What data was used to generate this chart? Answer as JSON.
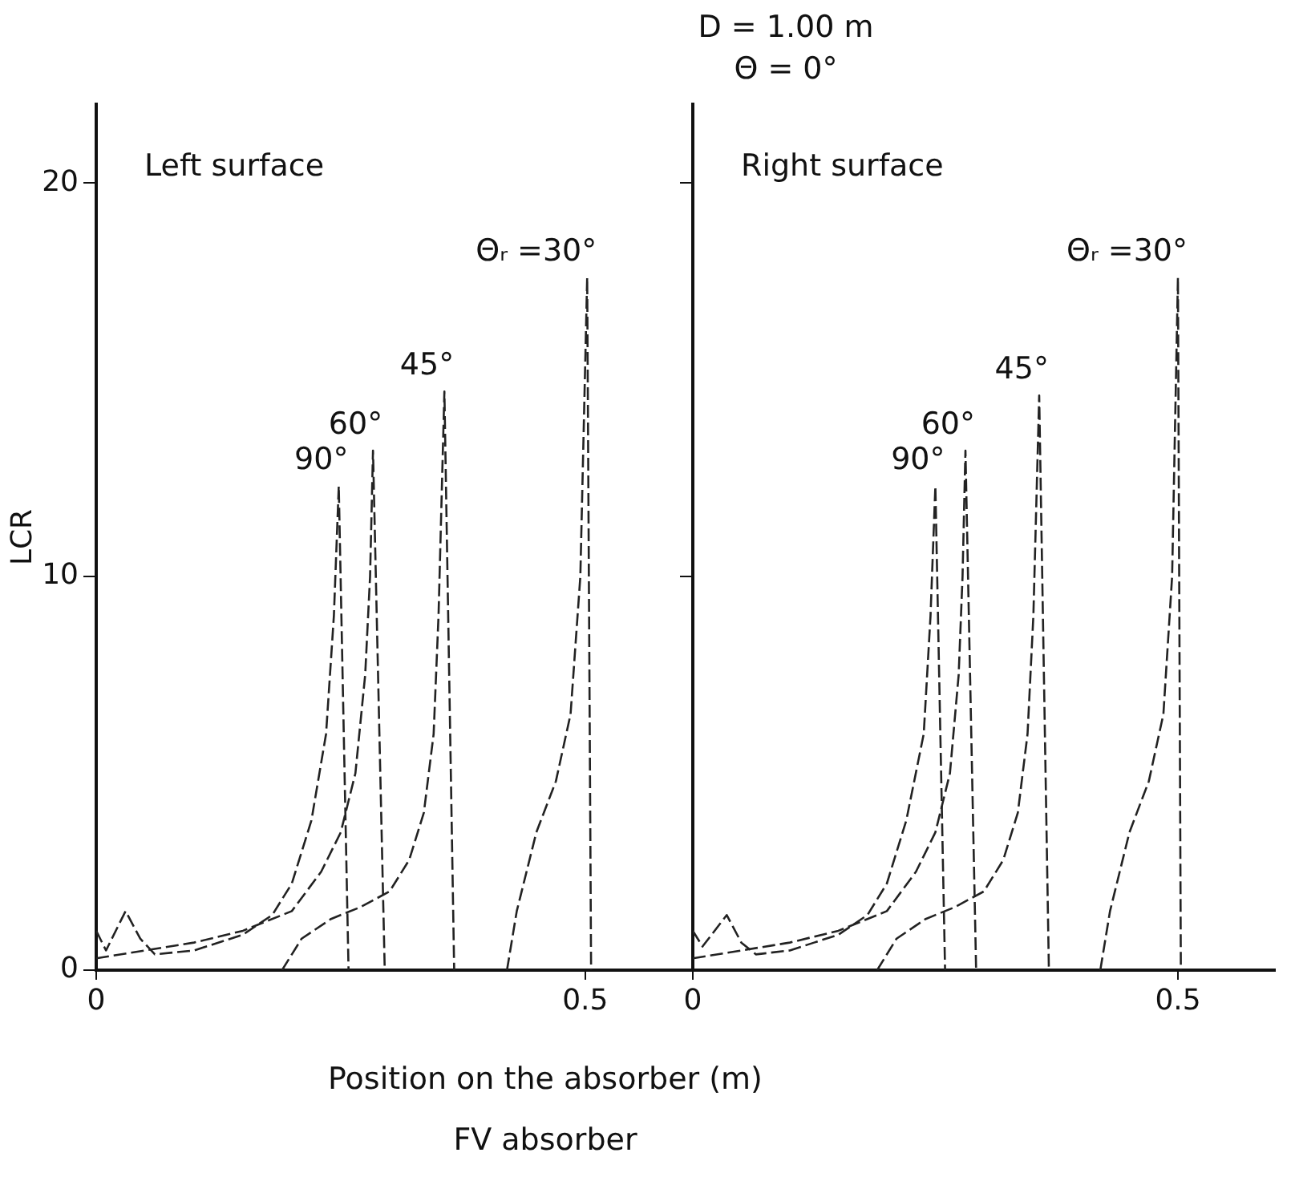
{
  "chart_data": [
    {
      "type": "line",
      "ylabel": "LCR",
      "xlabel": "Position on the absorber (m)",
      "annotations": [
        "Left surface",
        "FV absorber"
      ],
      "xlim": [
        0,
        0.61
      ],
      "xticks": [
        {
          "value": 0,
          "label": "0"
        },
        0.5
      ],
      "ylim": [
        0,
        22
      ],
      "yticks": [
        {
          "value": 0,
          "label": "0"
        },
        10,
        20
      ],
      "grid": false,
      "legend": false,
      "marker": "none",
      "line_style": "dashed",
      "series": [
        {
          "name": "90°",
          "color": "#222222",
          "x": [
            0,
            0.01,
            0.03,
            0.045,
            0.06,
            0.1,
            0.15,
            0.18,
            0.2,
            0.22,
            0.235,
            0.243,
            0.248,
            0.258
          ],
          "values": [
            1,
            0.5,
            1.5,
            0.8,
            0.4,
            0.5,
            0.9,
            1.4,
            2.2,
            3.8,
            6,
            9,
            12.3,
            0
          ]
        },
        {
          "name": "60°",
          "color": "#222222",
          "x": [
            0,
            0.05,
            0.1,
            0.15,
            0.2,
            0.23,
            0.25,
            0.265,
            0.275,
            0.28,
            0.283,
            0.295
          ],
          "values": [
            0.3,
            0.5,
            0.7,
            1,
            1.5,
            2.5,
            3.5,
            5,
            7.5,
            10,
            13.2,
            0
          ]
        },
        {
          "name": "45°",
          "color": "#222222",
          "x": [
            0.19,
            0.21,
            0.24,
            0.27,
            0.3,
            0.32,
            0.335,
            0.345,
            0.35,
            0.356,
            0.366
          ],
          "values": [
            0,
            0.8,
            1.3,
            1.6,
            2,
            2.8,
            4,
            6,
            9,
            14.7,
            0
          ]
        },
        {
          "name": "Θᵣ =30°",
          "color": "#222222",
          "x": [
            0.42,
            0.43,
            0.45,
            0.47,
            0.485,
            0.495,
            0.502,
            0.506
          ],
          "values": [
            0,
            1.5,
            3.5,
            4.8,
            6.5,
            10,
            17.6,
            0
          ]
        }
      ]
    },
    {
      "type": "line",
      "title": "D = 1.00 m",
      "subtitle": "Θ = 0°",
      "annotations": [
        "Right surface"
      ],
      "xlim": [
        0,
        0.6
      ],
      "xticks": [
        {
          "value": 0,
          "label": "0"
        },
        0.5
      ],
      "ylim": [
        0,
        22
      ],
      "yticks": [
        0,
        10,
        20
      ],
      "tick_labels": "x",
      "grid": false,
      "legend": false,
      "marker": "none",
      "line_style": "dashed",
      "series": [
        {
          "name": "90°",
          "color": "#222222",
          "x": [
            0,
            0.01,
            0.035,
            0.05,
            0.065,
            0.1,
            0.15,
            0.18,
            0.2,
            0.22,
            0.238,
            0.245,
            0.25,
            0.26
          ],
          "values": [
            1,
            0.6,
            1.4,
            0.7,
            0.4,
            0.5,
            0.9,
            1.4,
            2.2,
            3.8,
            6,
            9,
            12.3,
            0
          ]
        },
        {
          "name": "60°",
          "color": "#222222",
          "x": [
            0,
            0.05,
            0.1,
            0.15,
            0.2,
            0.23,
            0.25,
            0.265,
            0.274,
            0.278,
            0.281,
            0.292
          ],
          "values": [
            0.3,
            0.5,
            0.7,
            1,
            1.5,
            2.5,
            3.5,
            5,
            7.5,
            10,
            13.2,
            0
          ]
        },
        {
          "name": "45°",
          "color": "#222222",
          "x": [
            0.19,
            0.21,
            0.24,
            0.27,
            0.3,
            0.32,
            0.335,
            0.345,
            0.351,
            0.357,
            0.367
          ],
          "values": [
            0,
            0.8,
            1.3,
            1.6,
            2,
            2.8,
            4,
            6,
            9,
            14.6,
            0
          ]
        },
        {
          "name": "Θᵣ =30°",
          "color": "#222222",
          "x": [
            0.42,
            0.43,
            0.45,
            0.47,
            0.485,
            0.494,
            0.5,
            0.503
          ],
          "values": [
            0,
            1.5,
            3.5,
            4.8,
            6.5,
            10,
            17.6,
            0
          ]
        }
      ]
    }
  ]
}
